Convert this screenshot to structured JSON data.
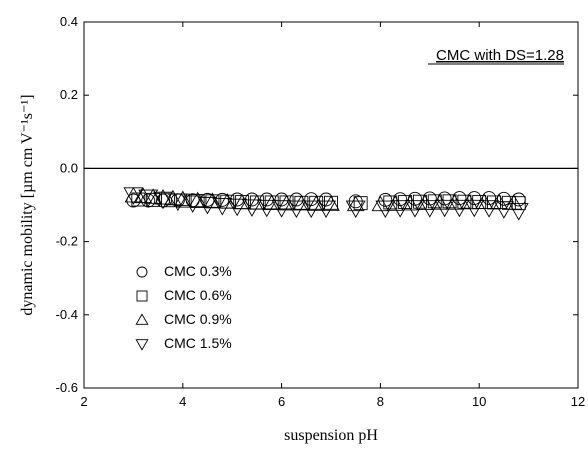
{
  "chart_data": {
    "type": "scatter",
    "xlabel": "suspension pH",
    "ylabel": "dynamic mobility [µm cm V⁻¹s⁻¹]",
    "xlim": [
      2,
      12
    ],
    "ylim": [
      -0.6,
      0.4
    ],
    "xticks": [
      2,
      4,
      6,
      8,
      10,
      12
    ],
    "yticks": [
      -0.6,
      -0.4,
      -0.2,
      0.0,
      0.2,
      0.4
    ],
    "xtick_labels": [
      "2",
      "4",
      "6",
      "8",
      "10",
      "12"
    ],
    "ytick_labels": [
      "-0.6",
      "-0.4",
      "-0.2",
      "0.0",
      "0.2",
      "0.4"
    ],
    "reference_line_y": 0.0,
    "grid": false,
    "legend_position": "bottom-left",
    "annotation": "CMC with DS=1.28",
    "series": [
      {
        "name": "CMC 0.3%",
        "marker": "circle",
        "x": [
          3.0,
          3.3,
          3.6,
          3.9,
          4.2,
          4.5,
          4.8,
          5.1,
          5.4,
          5.7,
          6.0,
          6.3,
          6.6,
          6.9,
          7.5,
          8.1,
          8.4,
          8.7,
          9.0,
          9.3,
          9.6,
          9.9,
          10.2,
          10.5,
          10.8
        ],
        "y": [
          -0.088,
          -0.088,
          -0.088,
          -0.087,
          -0.087,
          -0.086,
          -0.086,
          -0.085,
          -0.085,
          -0.085,
          -0.085,
          -0.085,
          -0.084,
          -0.085,
          -0.09,
          -0.086,
          -0.084,
          -0.083,
          -0.082,
          -0.082,
          -0.081,
          -0.081,
          -0.081,
          -0.083,
          -0.085
        ]
      },
      {
        "name": "CMC 0.6%",
        "marker": "square",
        "x": [
          3.1,
          3.4,
          3.7,
          4.0,
          4.3,
          4.6,
          4.9,
          5.2,
          5.5,
          5.8,
          6.1,
          6.4,
          6.7,
          7.0,
          7.6,
          8.2,
          8.5,
          8.8,
          9.1,
          9.4,
          9.7,
          10.0,
          10.3,
          10.6,
          10.8
        ],
        "y": [
          -0.085,
          -0.086,
          -0.087,
          -0.088,
          -0.089,
          -0.09,
          -0.091,
          -0.092,
          -0.093,
          -0.093,
          -0.093,
          -0.094,
          -0.094,
          -0.094,
          -0.095,
          -0.093,
          -0.092,
          -0.091,
          -0.09,
          -0.09,
          -0.091,
          -0.092,
          -0.093,
          -0.094,
          -0.095
        ]
      },
      {
        "name": "CMC 0.9%",
        "marker": "triangle-up",
        "x": [
          3.0,
          3.2,
          3.4,
          3.6,
          3.8,
          4.0,
          4.3,
          4.6,
          4.9,
          5.2,
          5.5,
          5.8,
          6.1,
          6.4,
          6.7,
          7.0,
          7.5,
          8.0,
          8.3,
          8.6,
          8.9,
          9.2,
          9.5,
          9.8,
          10.1,
          10.4,
          10.7
        ],
        "y": [
          -0.075,
          -0.077,
          -0.079,
          -0.081,
          -0.083,
          -0.085,
          -0.088,
          -0.09,
          -0.092,
          -0.094,
          -0.095,
          -0.096,
          -0.097,
          -0.097,
          -0.098,
          -0.098,
          -0.099,
          -0.099,
          -0.098,
          -0.097,
          -0.096,
          -0.095,
          -0.095,
          -0.094,
          -0.093,
          -0.093,
          -0.095
        ]
      },
      {
        "name": "CMC 1.5%",
        "marker": "triangle-down",
        "x": [
          3.0,
          3.3,
          3.6,
          3.9,
          4.2,
          4.5,
          4.8,
          5.1,
          5.4,
          5.7,
          6.0,
          6.3,
          6.6,
          6.9,
          7.5,
          8.1,
          8.4,
          8.7,
          9.0,
          9.3,
          9.6,
          9.9,
          10.2,
          10.5,
          10.8
        ],
        "y": [
          -0.072,
          -0.078,
          -0.084,
          -0.089,
          -0.094,
          -0.098,
          -0.101,
          -0.103,
          -0.105,
          -0.106,
          -0.107,
          -0.108,
          -0.108,
          -0.108,
          -0.108,
          -0.108,
          -0.107,
          -0.107,
          -0.107,
          -0.106,
          -0.106,
          -0.106,
          -0.107,
          -0.11,
          -0.115
        ]
      }
    ]
  }
}
